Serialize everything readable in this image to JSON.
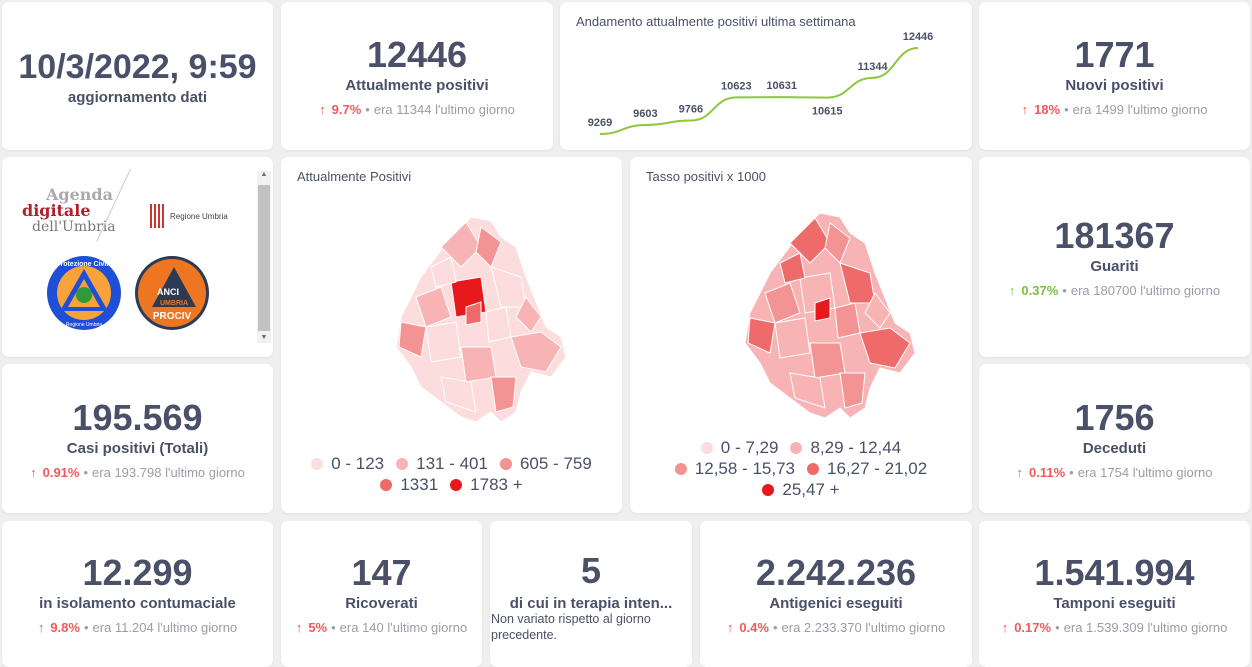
{
  "update": {
    "datetime": "10/3/2022, 9:59",
    "label": "aggiornamento dati"
  },
  "kpis": {
    "attuali": {
      "value": "12446",
      "label": "Attualmente positivi",
      "pct": "9.7%",
      "prev": "era 11344",
      "suffix": "l'ultimo giorno"
    },
    "nuovi": {
      "value": "1771",
      "label": "Nuovi positivi",
      "pct": "18%",
      "prev": "era 1499",
      "suffix": "l'ultimo giorno"
    },
    "guariti": {
      "value": "181367",
      "label": "Guariti",
      "pct": "0.37%",
      "prev": "era 180700",
      "suffix": "l'ultimo giorno"
    },
    "casi": {
      "value": "195.569",
      "label": "Casi positivi (Totali)",
      "pct": "0.91%",
      "prev": "era 193.798",
      "suffix": "l'ultimo giorno"
    },
    "deceduti": {
      "value": "1756",
      "label": "Deceduti",
      "pct": "0.11%",
      "prev": "era 1754",
      "suffix": "l'ultimo giorno"
    },
    "isolamento": {
      "value": "12.299",
      "label": "in isolamento contumaciale",
      "pct": "9.8%",
      "prev": "era 11.204",
      "suffix": "l'ultimo giorno"
    },
    "ricoverati": {
      "value": "147",
      "label": "Ricoverati",
      "pct": "5%",
      "prev": "era 140",
      "suffix": "l'ultimo giorno"
    },
    "terapia": {
      "value": "5",
      "label": "di cui in terapia inten...",
      "note": "Non variato rispetto al giorno precedente."
    },
    "antigenici": {
      "value": "2.242.236",
      "label": "Antigenici eseguiti",
      "pct": "0.4%",
      "prev": "era 2.233.370",
      "suffix": "l'ultimo giorno"
    },
    "tamponi": {
      "value": "1.541.994",
      "label": "Tamponi eseguiti",
      "pct": "0.17%",
      "prev": "era 1.539.309",
      "suffix": "l'ultimo giorno"
    }
  },
  "icons": {
    "up": "↑",
    "bullet": "•"
  },
  "logos": {
    "agenda": [
      "Agenda",
      "digitale",
      "dell'Umbria"
    ],
    "regione": "Regione Umbria",
    "protezione": "Protezione Civile",
    "protezione_sub": "Regione Umbria",
    "anci": [
      "ANCI",
      "UMBRIA",
      "PROCIV"
    ]
  },
  "chart_data": {
    "type": "line",
    "title": "Andamento attualmente positivi ultima settimana",
    "values": [
      9269,
      9603,
      9766,
      10623,
      10631,
      10615,
      11344,
      12446
    ],
    "labels": [
      "9269",
      "9603",
      "9766",
      "10623",
      "10631",
      "10615",
      "11344",
      "12446"
    ],
    "color": "#8dc63f"
  },
  "maps": [
    {
      "title": "Attualmente Positivi",
      "legend": [
        "0 - 123",
        "131 - 401",
        "605 - 759",
        "1331",
        "1783 +"
      ]
    },
    {
      "title": "Tasso positivi x 1000",
      "legend": [
        "0 - 7,29",
        "8,29 - 12,44",
        "12,58 - 15,73",
        "16,27 - 21,02",
        "25,47 +"
      ]
    }
  ],
  "legend_colors": [
    "#fcdcdc",
    "#f8b4b4",
    "#f39393",
    "#ef6b6b",
    "#e8191c"
  ]
}
